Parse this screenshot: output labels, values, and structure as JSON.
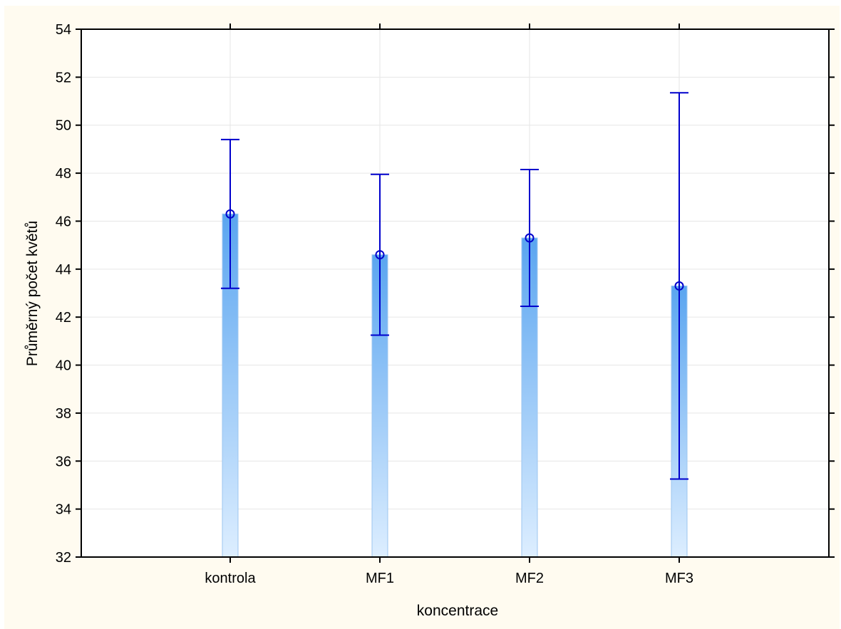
{
  "chart_data": {
    "type": "bar",
    "title": "",
    "xlabel": "koncentrace",
    "ylabel": "Průměrný počet květů",
    "categories": [
      "kontrola",
      "MF1",
      "MF2",
      "MF3"
    ],
    "series": [
      {
        "values": [
          46.3,
          44.6,
          45.3,
          43.3
        ],
        "error_low": [
          43.2,
          41.25,
          42.45,
          35.25
        ],
        "error_high": [
          49.4,
          47.95,
          48.15,
          51.35
        ]
      }
    ],
    "ylim": [
      32,
      54
    ],
    "yticks": [
      32,
      34,
      36,
      38,
      40,
      42,
      44,
      46,
      48,
      50,
      52,
      54
    ],
    "grid": true,
    "colors": {
      "background": "#fffbf0",
      "plot_background": "#ffffff",
      "bar_top": "#5aa5f0",
      "bar_bottom": "#ddeeff",
      "error_bar": "#0000cc",
      "grid": "#e6e6e6"
    }
  }
}
